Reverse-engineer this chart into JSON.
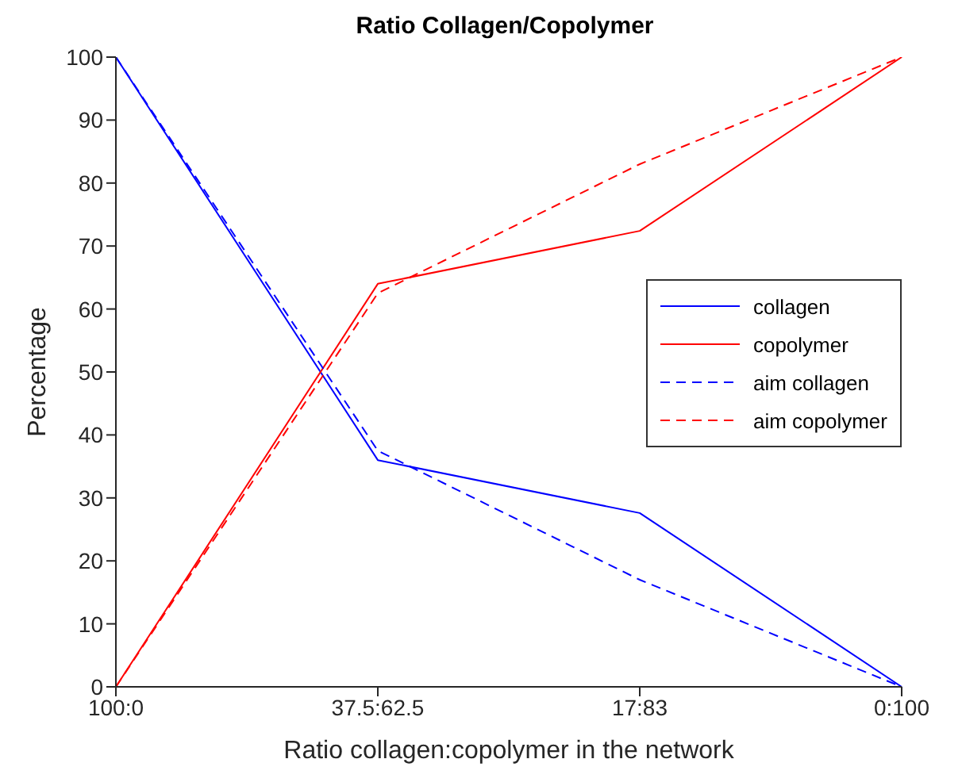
{
  "chart_data": {
    "type": "line",
    "title": "Ratio Collagen/Copolymer",
    "xlabel": "Ratio collagen:copolymer in the network",
    "ylabel": "Percentage",
    "categories": [
      "100:0",
      "37.5:62.5",
      "17:83",
      "0:100"
    ],
    "series": [
      {
        "name": "collagen",
        "color": "#0000ff",
        "values": [
          100,
          36,
          27.6,
          0
        ],
        "line_style": "solid"
      },
      {
        "name": "copolymer",
        "color": "#ff0000",
        "values": [
          0,
          64,
          72.4,
          100
        ],
        "line_style": "solid"
      },
      {
        "name": "aim collagen",
        "color": "#0000ff",
        "values": [
          100,
          37.5,
          17,
          0
        ],
        "line_style": "dashed"
      },
      {
        "name": "aim copolymer",
        "color": "#ff0000",
        "values": [
          0,
          62.5,
          83,
          100
        ],
        "line_style": "dashed"
      }
    ],
    "ylim": [
      0,
      100
    ],
    "yticks": [
      0,
      10,
      20,
      30,
      40,
      50,
      60,
      70,
      80,
      90,
      100
    ],
    "grid": false,
    "legend": "right",
    "marker": "none"
  }
}
